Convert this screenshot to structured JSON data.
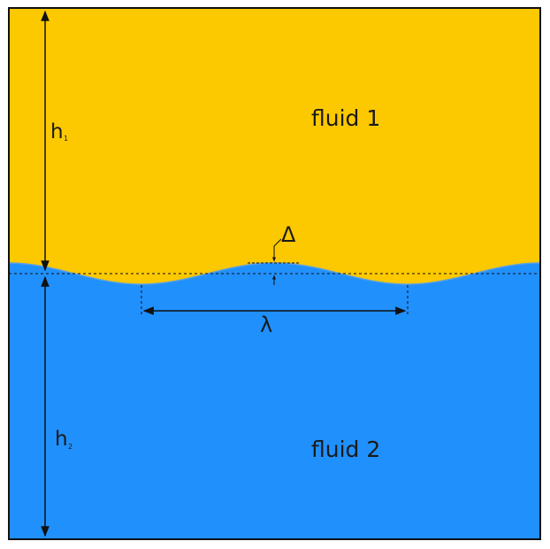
{
  "colors": {
    "fluid_1": "#fcc800",
    "fluid_2": "#2090fc",
    "outline": "#111111",
    "interface_line": "#5aa0e0"
  },
  "labels": {
    "fluid_1": "fluid 1",
    "fluid_2": "fluid 2",
    "h1_main": "h",
    "h1_sub": "1",
    "h2_main": "h",
    "h2_sub": "2",
    "wavelength": "λ",
    "amplitude": "Δ"
  }
}
